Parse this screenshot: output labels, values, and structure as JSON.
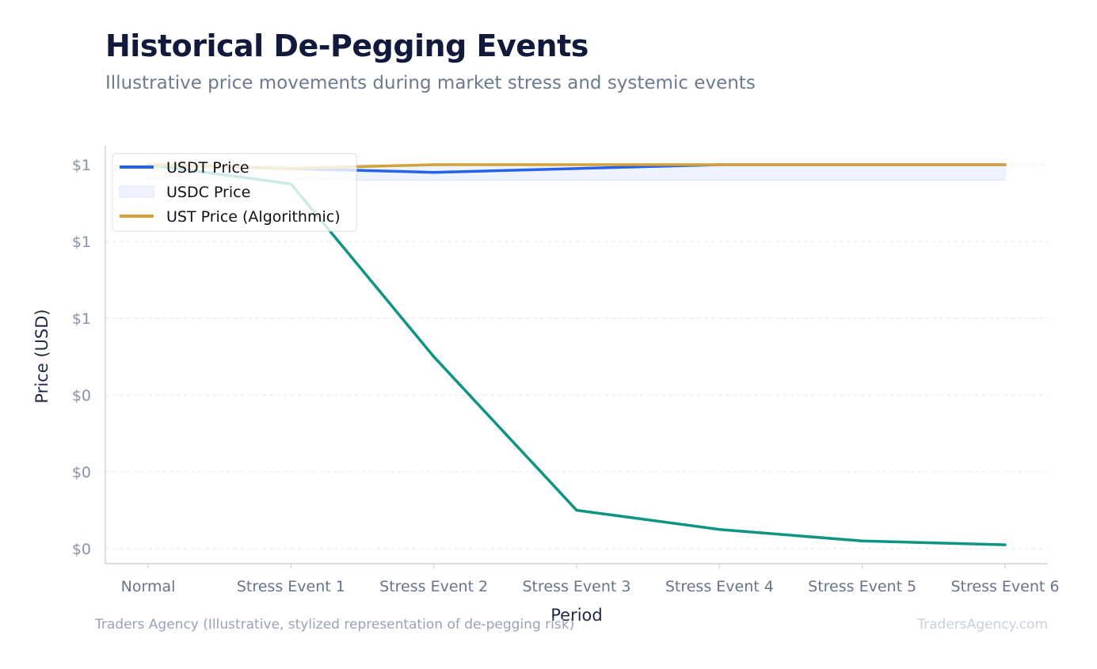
{
  "header": {
    "title": "Historical De-Pegging Events",
    "subtitle": "Illustrative price movements during market stress and systemic events"
  },
  "footer": {
    "source": "Traders Agency (Illustrative, stylized representation of de-pegging risk)",
    "watermark": "TradersAgency.com"
  },
  "chart_data": {
    "type": "line",
    "title": "Historical De-Pegging Events",
    "subtitle": "Illustrative price movements during market stress and systemic events",
    "xlabel": "Period",
    "ylabel": "Price (USD)",
    "categories": [
      "Normal",
      "Stress Event 1",
      "Stress Event 2",
      "Stress Event 3",
      "Stress Event 4",
      "Stress Event 5",
      "Stress Event 6"
    ],
    "ylim": [
      0.0,
      1.0
    ],
    "yticks": [
      0.0,
      0.2,
      0.4,
      0.6,
      0.8,
      1.0
    ],
    "ytick_labels": [
      "$0",
      "$0",
      "$0",
      "$1",
      "$1",
      "$1"
    ],
    "grid": "horizontal dashed",
    "legend_position": "top-left",
    "band": {
      "name": "USDC Price",
      "low": 0.96,
      "high": 1.0,
      "color": "#eef3ff",
      "edge": "#dde6fb"
    },
    "series": [
      {
        "name": "USDT Price",
        "color": "#2563eb",
        "values": [
          1.0,
          0.99,
          0.98,
          0.99,
          1.0,
          1.0,
          1.0
        ]
      },
      {
        "name": "UST Price (Algorithmic)",
        "color": "#d4a23a",
        "values": [
          1.0,
          0.99,
          1.0,
          1.0,
          1.0,
          1.0,
          1.0
        ]
      },
      {
        "name": "",
        "color": "#0f9482",
        "values": [
          1.0,
          0.95,
          0.5,
          0.1,
          0.05,
          0.02,
          0.01
        ]
      }
    ],
    "legend": [
      {
        "label": "USDT Price",
        "symbol": "line",
        "color": "#2563eb"
      },
      {
        "label": "USDC Price",
        "symbol": "band",
        "color": "#eef3ff"
      },
      {
        "label": "UST Price (Algorithmic)",
        "symbol": "line",
        "color": "#d4a23a"
      }
    ]
  }
}
